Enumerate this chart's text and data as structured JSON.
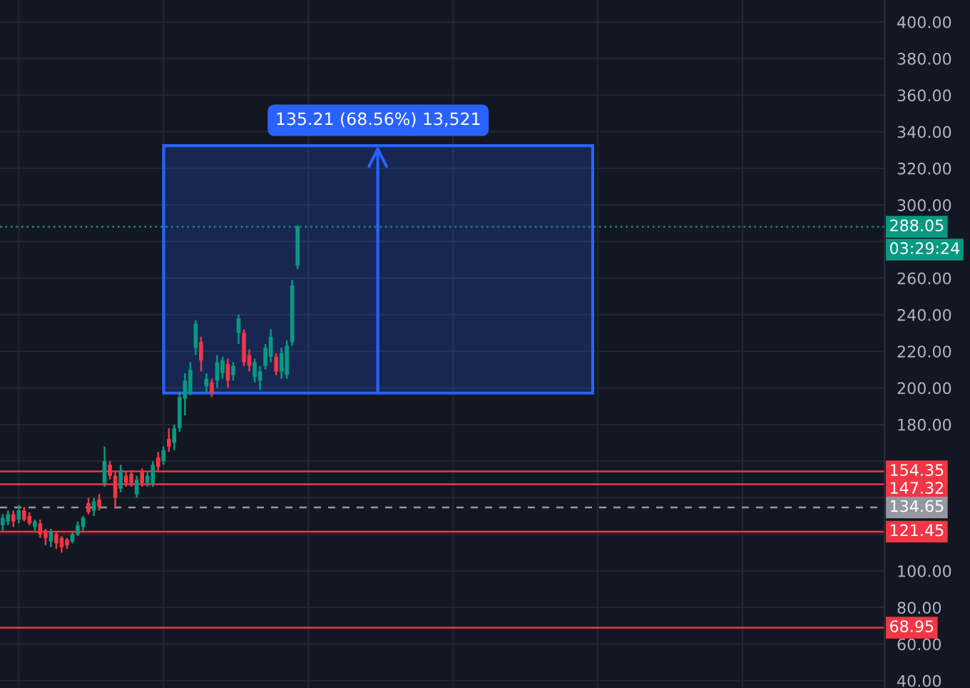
{
  "chart_data": {
    "type": "candlestick",
    "categories": [
      null,
      null,
      null,
      null,
      null,
      null,
      null,
      null,
      null,
      null,
      null,
      null,
      null,
      null,
      null,
      null,
      null,
      null,
      null,
      null,
      null,
      null,
      null,
      null,
      null,
      null,
      null,
      null,
      null,
      null,
      null,
      null,
      null,
      null,
      null,
      null,
      null,
      null,
      null,
      null,
      null,
      null,
      null,
      null,
      null,
      null,
      null,
      null,
      null,
      null,
      null,
      null,
      null,
      null,
      null,
      null,
      null,
      null,
      null,
      null,
      null,
      null,
      null,
      null,
      null,
      null,
      null,
      null,
      null,
      null,
      null,
      null,
      null,
      null,
      null,
      null,
      null,
      null,
      null,
      null,
      null,
      null,
      null,
      null,
      null,
      null,
      null,
      null,
      null,
      null,
      null,
      null,
      null,
      null,
      null,
      null,
      null,
      null,
      null,
      null,
      null,
      null,
      null,
      null,
      null,
      null,
      null,
      null,
      null,
      null,
      null,
      null,
      null,
      null,
      null,
      null,
      null,
      null,
      null,
      null,
      null,
      null,
      null,
      null,
      null,
      null,
      null,
      null,
      null,
      null,
      null,
      null,
      null,
      null,
      null,
      null,
      null,
      null,
      null,
      null,
      null,
      null,
      null,
      null,
      null,
      null,
      null,
      null,
      null,
      null,
      null,
      null,
      null,
      null,
      null,
      null,
      null,
      null,
      null,
      null,
      null,
      null,
      null,
      null,
      null
    ],
    "ohlc": [
      [
        125,
        131,
        122,
        129
      ],
      [
        127,
        133,
        125,
        131
      ],
      [
        131,
        133,
        124,
        127
      ],
      [
        128,
        136,
        126,
        133
      ],
      [
        133,
        135,
        127,
        128
      ],
      [
        130,
        132,
        125,
        126
      ],
      [
        124,
        128,
        122,
        127
      ],
      [
        126,
        128,
        118,
        120
      ],
      [
        122,
        123,
        114,
        118
      ],
      [
        116,
        123,
        113,
        121
      ],
      [
        120,
        121,
        112,
        115
      ],
      [
        118,
        119,
        110,
        113
      ],
      [
        117,
        118,
        112,
        114
      ],
      [
        116,
        121,
        115,
        120
      ],
      [
        120,
        127,
        119,
        125
      ],
      [
        124,
        130,
        122,
        129
      ],
      [
        137,
        140,
        131,
        132
      ],
      [
        133,
        140,
        130,
        138
      ],
      [
        139,
        142,
        133,
        135
      ],
      [
        148,
        168,
        146,
        160
      ],
      [
        158,
        160,
        150,
        152
      ],
      [
        152,
        154,
        134,
        140
      ],
      [
        145,
        158,
        143,
        155
      ],
      [
        152,
        154,
        146,
        148
      ],
      [
        153,
        155,
        146,
        148
      ],
      [
        142,
        152,
        140,
        150
      ],
      [
        154,
        156,
        146,
        148
      ],
      [
        148,
        154,
        146,
        152
      ],
      [
        148,
        160,
        146,
        158
      ],
      [
        162,
        165,
        155,
        157
      ],
      [
        160,
        168,
        158,
        166
      ],
      [
        172,
        178,
        165,
        168
      ],
      [
        170,
        180,
        166,
        178
      ],
      [
        178,
        198,
        176,
        195
      ],
      [
        194,
        208,
        185,
        204
      ],
      [
        198,
        214,
        196,
        210
      ],
      [
        222,
        237,
        218,
        235
      ],
      [
        225,
        228,
        209,
        215
      ],
      [
        201,
        208,
        197,
        205
      ],
      [
        203,
        205,
        195,
        197
      ],
      [
        204,
        218,
        200,
        214
      ],
      [
        208,
        217,
        205,
        215
      ],
      [
        213,
        216,
        200,
        204
      ],
      [
        207,
        214,
        204,
        212
      ],
      [
        230,
        240,
        224,
        238
      ],
      [
        230,
        232,
        212,
        214
      ],
      [
        218,
        221,
        209,
        212
      ],
      [
        206,
        216,
        203,
        214
      ],
      [
        204,
        212,
        199,
        209
      ],
      [
        212,
        224,
        210,
        222
      ],
      [
        217,
        232,
        214,
        228
      ],
      [
        217,
        219,
        207,
        209
      ],
      [
        209,
        222,
        205,
        219
      ],
      [
        207,
        226,
        205,
        223
      ],
      [
        225,
        259,
        223,
        256
      ],
      [
        267,
        289,
        265,
        288.05
      ],
      null,
      null,
      null,
      null,
      null,
      null,
      null,
      null,
      null,
      null,
      null,
      null,
      null,
      null,
      null,
      null,
      null,
      null,
      null,
      null,
      null,
      null,
      null,
      null,
      null,
      null,
      null,
      null,
      null,
      null,
      null,
      null,
      null,
      null,
      null,
      null,
      null,
      null,
      null,
      null,
      null,
      null,
      null,
      null,
      null,
      null,
      null,
      null,
      null,
      null,
      null,
      null,
      null,
      null,
      null,
      null,
      null,
      null,
      null,
      null,
      null,
      null,
      null,
      null,
      null,
      null,
      null,
      null,
      null,
      null,
      null,
      null,
      null,
      null,
      null,
      null,
      null,
      null,
      null,
      null,
      null,
      null,
      null,
      null,
      null,
      null,
      null,
      null,
      null,
      null,
      null,
      null,
      null,
      null,
      null,
      null,
      null,
      null,
      null,
      null,
      null,
      null,
      null,
      null,
      null,
      null,
      null,
      null,
      null
    ],
    "colors": [
      "#089981",
      "#089981",
      "#f23645",
      "#089981",
      "#f23645",
      "#f23645",
      "#089981",
      "#f23645",
      "#f23645",
      "#089981",
      "#f23645",
      "#f23645",
      "#f23645",
      "#089981",
      "#089981",
      "#089981",
      "#f23645",
      "#089981",
      "#f23645",
      "#089981",
      "#f23645",
      "#f23645",
      "#089981",
      "#f23645",
      "#f23645",
      "#089981",
      "#f23645",
      "#089981",
      "#089981",
      "#f23645",
      "#089981",
      "#f23645",
      "#089981",
      "#089981",
      "#089981",
      "#089981",
      "#089981",
      "#f23645",
      "#089981",
      "#f23645",
      "#089981",
      "#089981",
      "#f23645",
      "#089981",
      "#089981",
      "#f23645",
      "#f23645",
      "#089981",
      "#089981",
      "#089981",
      "#089981",
      "#f23645",
      "#089981",
      "#089981",
      "#089981",
      "#089981",
      null,
      null,
      null,
      null,
      null,
      null,
      null,
      null,
      null,
      null,
      null,
      null,
      null,
      null,
      null,
      null,
      null,
      null,
      null,
      null,
      null,
      null,
      null,
      null,
      null,
      null,
      null,
      null,
      null,
      null,
      null,
      null,
      null,
      null,
      null,
      null,
      null,
      null,
      null,
      null,
      null,
      null,
      null,
      null,
      null,
      null,
      null,
      null,
      null,
      null,
      null,
      null,
      null,
      null,
      null,
      null,
      null,
      null,
      null,
      null,
      null,
      null,
      null,
      null,
      null,
      null,
      null,
      null,
      null,
      null,
      null,
      null,
      null,
      null,
      null,
      null,
      null,
      null,
      null,
      null,
      null,
      null,
      null,
      null,
      null,
      null,
      null,
      null,
      null,
      null,
      null,
      null,
      null,
      null,
      null,
      null,
      null,
      null,
      null,
      null,
      null,
      null,
      null,
      null,
      null,
      null,
      null,
      null,
      null
    ],
    "ylim": [
      36,
      412
    ],
    "yticks": [
      {
        "value": 40,
        "label": "40.00"
      },
      {
        "value": 60,
        "label": "60.00"
      },
      {
        "value": 80,
        "label": "80.00"
      },
      {
        "value": 100,
        "label": "100.00"
      },
      {
        "value": 120,
        "label": null
      },
      {
        "value": 140,
        "label": null
      },
      {
        "value": 160,
        "label": null
      },
      {
        "value": 180,
        "label": "180.00"
      },
      {
        "value": 200,
        "label": "200.00"
      },
      {
        "value": 220,
        "label": "220.00"
      },
      {
        "value": 240,
        "label": "240.00"
      },
      {
        "value": 260,
        "label": "260.00"
      },
      {
        "value": 280,
        "label": null
      },
      {
        "value": 300,
        "label": "300.00"
      },
      {
        "value": 320,
        "label": "320.00"
      },
      {
        "value": 340,
        "label": "340.00"
      },
      {
        "value": 360,
        "label": "360.00"
      },
      {
        "value": 380,
        "label": "380.00"
      },
      {
        "value": 400,
        "label": "400.00"
      }
    ],
    "grid": true,
    "ref_lines": [
      {
        "axis": "y",
        "value": 154.35,
        "label": "154.35",
        "color": "#f23645",
        "line_style": "solid"
      },
      {
        "axis": "y",
        "value": 147.32,
        "label": "147.32",
        "color": "#f23645",
        "line_style": "solid"
      },
      {
        "axis": "y",
        "value": 134.65,
        "label": "134.65",
        "color": "#9598a1",
        "line_style": "dashed"
      },
      {
        "axis": "y",
        "value": 121.45,
        "label": "121.45",
        "color": "#f23645",
        "line_style": "solid"
      },
      {
        "axis": "y",
        "value": 68.95,
        "label": "68.95",
        "color": "#f23645",
        "line_style": "solid"
      },
      {
        "axis": "y",
        "value": 288.05,
        "label": "288.05",
        "color": "#089981",
        "line_style": "dotted"
      }
    ],
    "bands": [
      {
        "axis": "y",
        "from": 197.2,
        "to": 332.4,
        "label": "135.21 (68.56%) 13,521",
        "color": "#2962ff"
      }
    ],
    "annotations": [
      "03:29:24"
    ]
  }
}
